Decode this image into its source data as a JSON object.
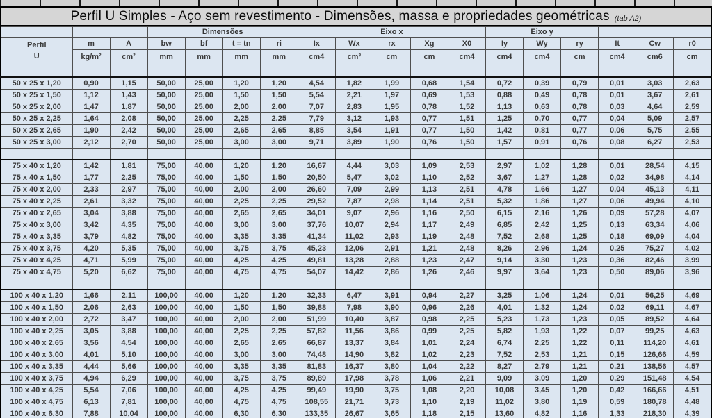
{
  "title": {
    "text": "Perfil U Simples - Aço sem revestimento - Dimensões, massa e propriedades geométricas",
    "tag": "(tab A2)"
  },
  "colors": {
    "cell_background": "#dce6f1",
    "title_background": "#d6d6d6",
    "grid_border": "#4f4f4f",
    "outer_border": "#000000",
    "text": "#3a3a3a"
  },
  "columns": {
    "group_row": [
      {
        "label": "",
        "span": 1
      },
      {
        "label": "",
        "span": 2
      },
      {
        "label": "Dimensões",
        "span": 4
      },
      {
        "label": "Eixo x",
        "span": 5
      },
      {
        "label": "Eixo y",
        "span": 3
      },
      {
        "label": "",
        "span": 3
      }
    ],
    "names": [
      "Perfil",
      "m",
      "A",
      "bw",
      "bf",
      "t = tn",
      "ri",
      "Ix",
      "Wx",
      "rx",
      "Xg",
      "X0",
      "Iy",
      "Wy",
      "ry",
      "It",
      "Cw",
      "r0"
    ],
    "sub_name": "U",
    "units": [
      "kg/m²",
      "cm²",
      "mm",
      "mm",
      "mm",
      "mm",
      "cm4",
      "cm³",
      "cm",
      "cm",
      "cm4",
      "cm4",
      "cm4",
      "cm",
      "cm4",
      "cm6",
      "cm"
    ],
    "keys": [
      "perfil",
      "m",
      "a",
      "bw",
      "bf",
      "t-tn",
      "ri",
      "ix",
      "wx",
      "rx",
      "xg",
      "x0",
      "iy",
      "wy",
      "ry",
      "it",
      "cw",
      "r0"
    ]
  },
  "table": {
    "groups": [
      {
        "rows": [
          [
            "50 x 25 x 1,20",
            "0,90",
            "1,15",
            "50,00",
            "25,00",
            "1,20",
            "1,20",
            "4,54",
            "1,82",
            "1,99",
            "0,68",
            "1,54",
            "0,72",
            "0,39",
            "0,79",
            "0,01",
            "3,03",
            "2,63"
          ],
          [
            "50 x 25 x 1,50",
            "1,12",
            "1,43",
            "50,00",
            "25,00",
            "1,50",
            "1,50",
            "5,54",
            "2,21",
            "1,97",
            "0,69",
            "1,53",
            "0,88",
            "0,49",
            "0,78",
            "0,01",
            "3,67",
            "2,61"
          ],
          [
            "50 x 25 x 2,00",
            "1,47",
            "1,87",
            "50,00",
            "25,00",
            "2,00",
            "2,00",
            "7,07",
            "2,83",
            "1,95",
            "0,78",
            "1,52",
            "1,13",
            "0,63",
            "0,78",
            "0,03",
            "4,64",
            "2,59"
          ],
          [
            "50 x 25 x 2,25",
            "1,64",
            "2,08",
            "50,00",
            "25,00",
            "2,25",
            "2,25",
            "7,79",
            "3,12",
            "1,93",
            "0,77",
            "1,51",
            "1,25",
            "0,70",
            "0,77",
            "0,04",
            "5,09",
            "2,57"
          ],
          [
            "50 x 25 x 2,65",
            "1,90",
            "2,42",
            "50,00",
            "25,00",
            "2,65",
            "2,65",
            "8,85",
            "3,54",
            "1,91",
            "0,77",
            "1,50",
            "1,42",
            "0,81",
            "0,77",
            "0,06",
            "5,75",
            "2,55"
          ],
          [
            "50 x 25 x 3,00",
            "2,12",
            "2,70",
            "50,00",
            "25,00",
            "3,00",
            "3,00",
            "9,71",
            "3,89",
            "1,90",
            "0,76",
            "1,50",
            "1,57",
            "0,91",
            "0,76",
            "0,08",
            "6,27",
            "2,53"
          ]
        ]
      },
      {
        "rows": [
          [
            "75 x 40 x 1,20",
            "1,42",
            "1,81",
            "75,00",
            "40,00",
            "1,20",
            "1,20",
            "16,67",
            "4,44",
            "3,03",
            "1,09",
            "2,53",
            "2,97",
            "1,02",
            "1,28",
            "0,01",
            "28,54",
            "4,15"
          ],
          [
            "75 x 40 x 1,50",
            "1,77",
            "2,25",
            "75,00",
            "40,00",
            "1,50",
            "1,50",
            "20,50",
            "5,47",
            "3,02",
            "1,10",
            "2,52",
            "3,67",
            "1,27",
            "1,28",
            "0,02",
            "34,98",
            "4,14"
          ],
          [
            "75 x 40 x 2,00",
            "2,33",
            "2,97",
            "75,00",
            "40,00",
            "2,00",
            "2,00",
            "26,60",
            "7,09",
            "2,99",
            "1,13",
            "2,51",
            "4,78",
            "1,66",
            "1,27",
            "0,04",
            "45,13",
            "4,11"
          ],
          [
            "75 x 40 x 2,25",
            "2,61",
            "3,32",
            "75,00",
            "40,00",
            "2,25",
            "2,25",
            "29,52",
            "7,87",
            "2,98",
            "1,14",
            "2,51",
            "5,32",
            "1,86",
            "1,27",
            "0,06",
            "49,94",
            "4,10"
          ],
          [
            "75 x 40 x 2,65",
            "3,04",
            "3,88",
            "75,00",
            "40,00",
            "2,65",
            "2,65",
            "34,01",
            "9,07",
            "2,96",
            "1,16",
            "2,50",
            "6,15",
            "2,16",
            "1,26",
            "0,09",
            "57,28",
            "4,07"
          ],
          [
            "75 x 40 x 3,00",
            "3,42",
            "4,35",
            "75,00",
            "40,00",
            "3,00",
            "3,00",
            "37,76",
            "10,07",
            "2,94",
            "1,17",
            "2,49",
            "6,85",
            "2,42",
            "1,25",
            "0,13",
            "63,34",
            "4,06"
          ],
          [
            "75 x 40 x 3,35",
            "3,79",
            "4,82",
            "75,00",
            "40,00",
            "3,35",
            "3,35",
            "41,34",
            "11,02",
            "2,93",
            "1,19",
            "2,48",
            "7,52",
            "2,68",
            "1,25",
            "0,18",
            "69,09",
            "4,04"
          ],
          [
            "75 x 40 x 3,75",
            "4,20",
            "5,35",
            "75,00",
            "40,00",
            "3,75",
            "3,75",
            "45,23",
            "12,06",
            "2,91",
            "1,21",
            "2,48",
            "8,26",
            "2,96",
            "1,24",
            "0,25",
            "75,27",
            "4,02"
          ],
          [
            "75 x 40 x 4,25",
            "4,71",
            "5,99",
            "75,00",
            "40,00",
            "4,25",
            "4,25",
            "49,81",
            "13,28",
            "2,88",
            "1,23",
            "2,47",
            "9,14",
            "3,30",
            "1,23",
            "0,36",
            "82,46",
            "3,99"
          ],
          [
            "75 x 40 x 4,75",
            "5,20",
            "6,62",
            "75,00",
            "40,00",
            "4,75",
            "4,75",
            "54,07",
            "14,42",
            "2,86",
            "1,26",
            "2,46",
            "9,97",
            "3,64",
            "1,23",
            "0,50",
            "89,06",
            "3,96"
          ]
        ]
      },
      {
        "rows": [
          [
            "100 x 40 x 1,20",
            "1,66",
            "2,11",
            "100,00",
            "40,00",
            "1,20",
            "1,20",
            "32,33",
            "6,47",
            "3,91",
            "0,94",
            "2,27",
            "3,25",
            "1,06",
            "1,24",
            "0,01",
            "56,25",
            "4,69"
          ],
          [
            "100 x 40 x 1,50",
            "2,06",
            "2,63",
            "100,00",
            "40,00",
            "1,50",
            "1,50",
            "39,88",
            "7,98",
            "3,90",
            "0,96",
            "2,26",
            "4,01",
            "1,32",
            "1,24",
            "0,02",
            "69,11",
            "4,67"
          ],
          [
            "100 x 40 x 2,00",
            "2,72",
            "3,47",
            "100,00",
            "40,00",
            "2,00",
            "2,00",
            "51,99",
            "10,40",
            "3,87",
            "0,98",
            "2,25",
            "5,23",
            "1,73",
            "1,23",
            "0,05",
            "89,52",
            "4,64"
          ],
          [
            "100 x 40 x 2,25",
            "3,05",
            "3,88",
            "100,00",
            "40,00",
            "2,25",
            "2,25",
            "57,82",
            "11,56",
            "3,86",
            "0,99",
            "2,25",
            "5,82",
            "1,93",
            "1,22",
            "0,07",
            "99,25",
            "4,63"
          ],
          [
            "100 x 40 x 2,65",
            "3,56",
            "4,54",
            "100,00",
            "40,00",
            "2,65",
            "2,65",
            "66,87",
            "13,37",
            "3,84",
            "1,01",
            "2,24",
            "6,74",
            "2,25",
            "1,22",
            "0,11",
            "114,20",
            "4,61"
          ],
          [
            "100 x 40 x 3,00",
            "4,01",
            "5,10",
            "100,00",
            "40,00",
            "3,00",
            "3,00",
            "74,48",
            "14,90",
            "3,82",
            "1,02",
            "2,23",
            "7,52",
            "2,53",
            "1,21",
            "0,15",
            "126,66",
            "4,59"
          ],
          [
            "100 x 40 x 3,35",
            "4,44",
            "5,66",
            "100,00",
            "40,00",
            "3,35",
            "3,35",
            "81,83",
            "16,37",
            "3,80",
            "1,04",
            "2,22",
            "8,27",
            "2,79",
            "1,21",
            "0,21",
            "138,56",
            "4,57"
          ],
          [
            "100 x 40 x 3,75",
            "4,94",
            "6,29",
            "100,00",
            "40,00",
            "3,75",
            "3,75",
            "89,89",
            "17,98",
            "3,78",
            "1,06",
            "2,21",
            "9,09",
            "3,09",
            "1,20",
            "0,29",
            "151,48",
            "4,54"
          ],
          [
            "100 x 40 x 4,25",
            "5,54",
            "7,06",
            "100,00",
            "40,00",
            "4,25",
            "4,25",
            "99,49",
            "19,90",
            "3,75",
            "1,08",
            "2,20",
            "10,08",
            "3,45",
            "1,20",
            "0,42",
            "166,66",
            "4,51"
          ],
          [
            "100 x 40 x 4,75",
            "6,13",
            "7,81",
            "100,00",
            "40,00",
            "4,75",
            "4,75",
            "108,55",
            "21,71",
            "3,73",
            "1,10",
            "2,19",
            "11,02",
            "3,80",
            "1,19",
            "0,59",
            "180,78",
            "4,48"
          ],
          [
            "100 x 40 x 6,30",
            "7,88",
            "10,04",
            "100,00",
            "40,00",
            "6,30",
            "6,30",
            "133,35",
            "26,67",
            "3,65",
            "1,18",
            "2,15",
            "13,60",
            "4,82",
            "1,16",
            "1,33",
            "218,30",
            "4,39"
          ]
        ]
      }
    ]
  }
}
